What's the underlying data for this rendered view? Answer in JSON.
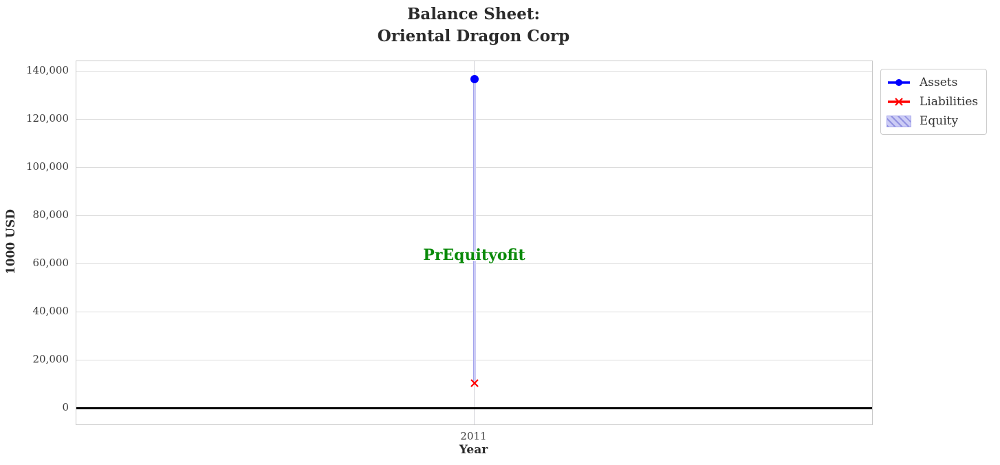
{
  "chart": {
    "title_line1": "Balance Sheet:",
    "title_line2": "Oriental Dragon Corp"
  },
  "chart_data": {
    "type": "line",
    "title": "Balance Sheet:\nOriental Dragon Corp",
    "xlabel": "Year",
    "ylabel": "1000 USD",
    "x": [
      2011
    ],
    "xlim": [
      2010.5,
      2011.5
    ],
    "ylim": [
      -6857,
      144000
    ],
    "grid": true,
    "series": [
      {
        "name": "Assets",
        "type": "line",
        "marker": "circle",
        "color": "#0000ff",
        "values": [
          136700
        ]
      },
      {
        "name": "Liabilities",
        "type": "line",
        "marker": "x",
        "color": "#ff0000",
        "values": [
          11100
        ]
      },
      {
        "name": "Equity",
        "type": "bar",
        "hatch": "///",
        "fill": "#ccccf5",
        "edge": "#a3a3ec",
        "bottom": [
          11100
        ],
        "values": [
          125600
        ]
      }
    ],
    "yticks": [
      {
        "v": 0,
        "label": "0"
      },
      {
        "v": 20000,
        "label": "20,000"
      },
      {
        "v": 40000,
        "label": "40,000"
      },
      {
        "v": 60000,
        "label": "60,000"
      },
      {
        "v": 80000,
        "label": "80,000"
      },
      {
        "v": 100000,
        "label": "100,000"
      },
      {
        "v": 120000,
        "label": "120,000"
      },
      {
        "v": 140000,
        "label": "140,000"
      }
    ],
    "xticks": [
      {
        "v": 2011,
        "label": "2011"
      }
    ],
    "zero_line": {
      "v": 0,
      "color": "#000000"
    },
    "annotation": {
      "text": "PrEquityofit",
      "color": "#0a8a0a",
      "x": 2011,
      "y": 63000
    },
    "legend": {
      "position": "outside-upper-right",
      "entries": [
        "Assets",
        "Liabilities",
        "Equity"
      ]
    }
  }
}
